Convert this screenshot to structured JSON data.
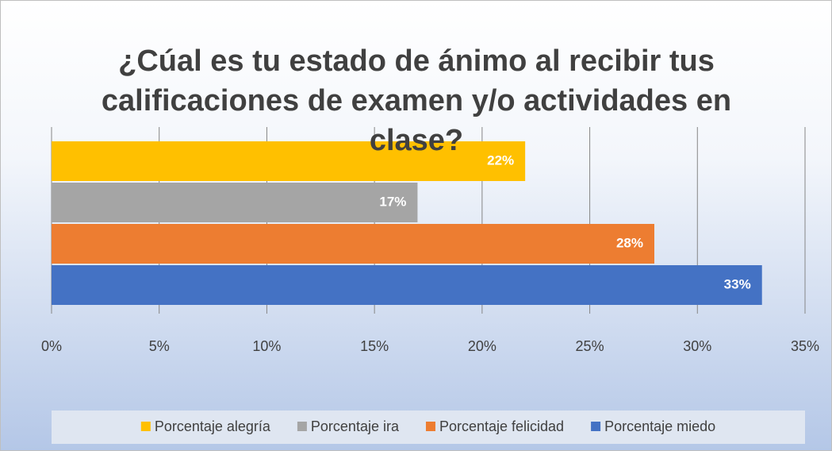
{
  "chart_data": {
    "type": "bar",
    "orientation": "horizontal",
    "title": "¿Cúal es tu estado de ánimo al recibir tus calificaciones de examen y/o actividades en clase?",
    "categories": [
      null
    ],
    "series": [
      {
        "name": "Porcentaje alegría",
        "color": "#ffc000",
        "values": [
          22
        ],
        "value_labels": [
          "22%"
        ]
      },
      {
        "name": "Porcentaje ira",
        "color": "#a5a5a5",
        "values": [
          17
        ],
        "value_labels": [
          "17%"
        ]
      },
      {
        "name": "Porcentaje felicidad",
        "color": "#ed7d31",
        "values": [
          28
        ],
        "value_labels": [
          "28%"
        ]
      },
      {
        "name": "Porcentaje miedo",
        "color": "#4472c4",
        "values": [
          33
        ],
        "value_labels": [
          "33%"
        ]
      }
    ],
    "xlim": [
      0,
      35
    ],
    "xticks": [
      {
        "value": 0,
        "label": "0%"
      },
      {
        "value": 5,
        "label": "5%"
      },
      {
        "value": 10,
        "label": "10%"
      },
      {
        "value": 15,
        "label": "15%"
      },
      {
        "value": 20,
        "label": "20%"
      },
      {
        "value": 25,
        "label": "25%"
      },
      {
        "value": 30,
        "label": "30%"
      },
      {
        "value": 35,
        "label": "35%"
      }
    ],
    "grid": true,
    "legend": "bottom"
  }
}
